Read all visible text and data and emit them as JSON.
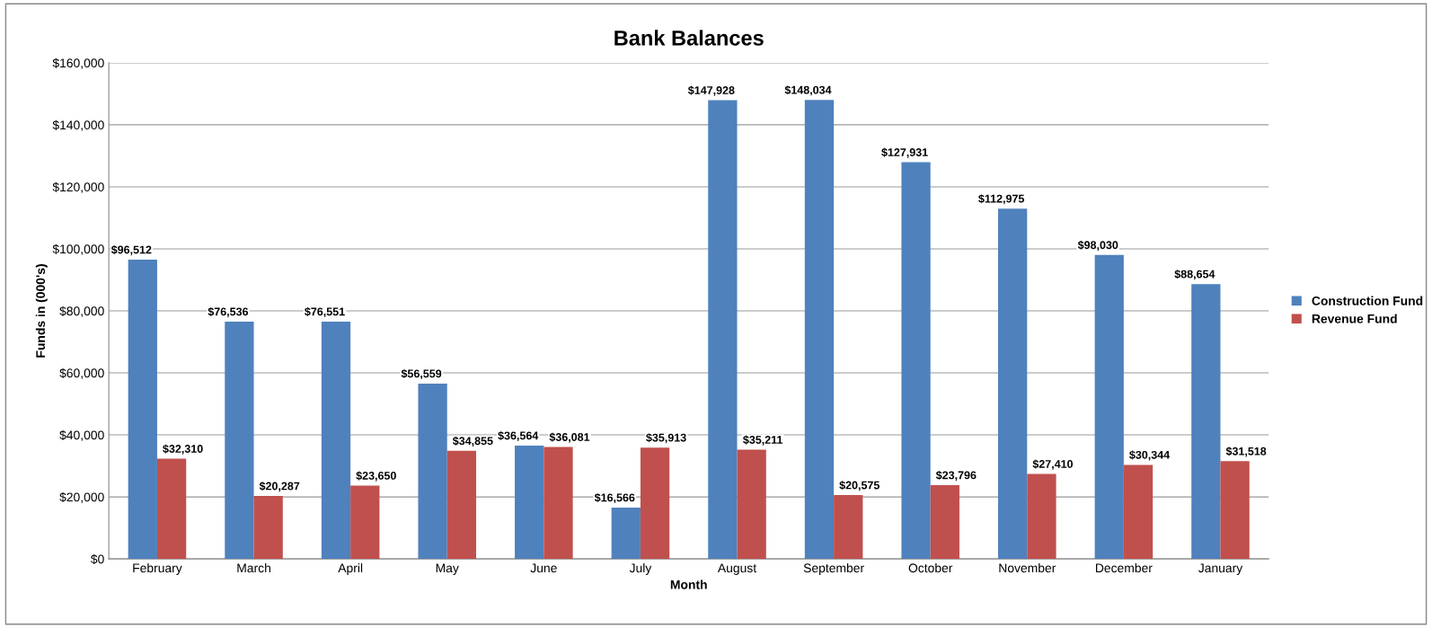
{
  "chart_data": {
    "type": "bar",
    "title": "Bank Balances",
    "xlabel": "Month",
    "ylabel": "Funds in (000's)",
    "categories": [
      "February",
      "March",
      "April",
      "May",
      "June",
      "July",
      "August",
      "September",
      "October",
      "November",
      "December",
      "January"
    ],
    "series": [
      {
        "name": "Construction Fund",
        "color": "#4f81bd",
        "values": [
          96512,
          76536,
          76551,
          56559,
          36564,
          16566,
          147928,
          148034,
          127931,
          112975,
          98030,
          88654
        ],
        "value_labels": [
          "$96,512",
          "$76,536",
          "$76,551",
          "$56,559",
          "$36,564",
          "$16,566",
          "$147,928",
          "$148,034",
          "$127,931",
          "$112,975",
          "$98,030",
          "$88,654"
        ]
      },
      {
        "name": "Revenue Fund",
        "color": "#c0504d",
        "values": [
          32310,
          20287,
          23650,
          34855,
          36081,
          35913,
          35211,
          20575,
          23796,
          27410,
          30344,
          31518
        ],
        "value_labels": [
          "$32,310",
          "$20,287",
          "$23,650",
          "$34,855",
          "$36,081",
          "$35,913",
          "$35,211",
          "$20,575",
          "$23,796",
          "$27,410",
          "$30,344",
          "$31,518"
        ]
      }
    ],
    "ylim": [
      0,
      160000
    ],
    "yticks": [
      {
        "value": 0,
        "label": "$0"
      },
      {
        "value": 20000,
        "label": "$20,000"
      },
      {
        "value": 40000,
        "label": "$40,000"
      },
      {
        "value": 60000,
        "label": "$60,000"
      },
      {
        "value": 80000,
        "label": "$80,000"
      },
      {
        "value": 100000,
        "label": "$100,000"
      },
      {
        "value": 120000,
        "label": "$120,000"
      },
      {
        "value": 140000,
        "label": "$140,000"
      },
      {
        "value": 160000,
        "label": "$160,000"
      }
    ],
    "grid": "y",
    "legend": "right"
  }
}
